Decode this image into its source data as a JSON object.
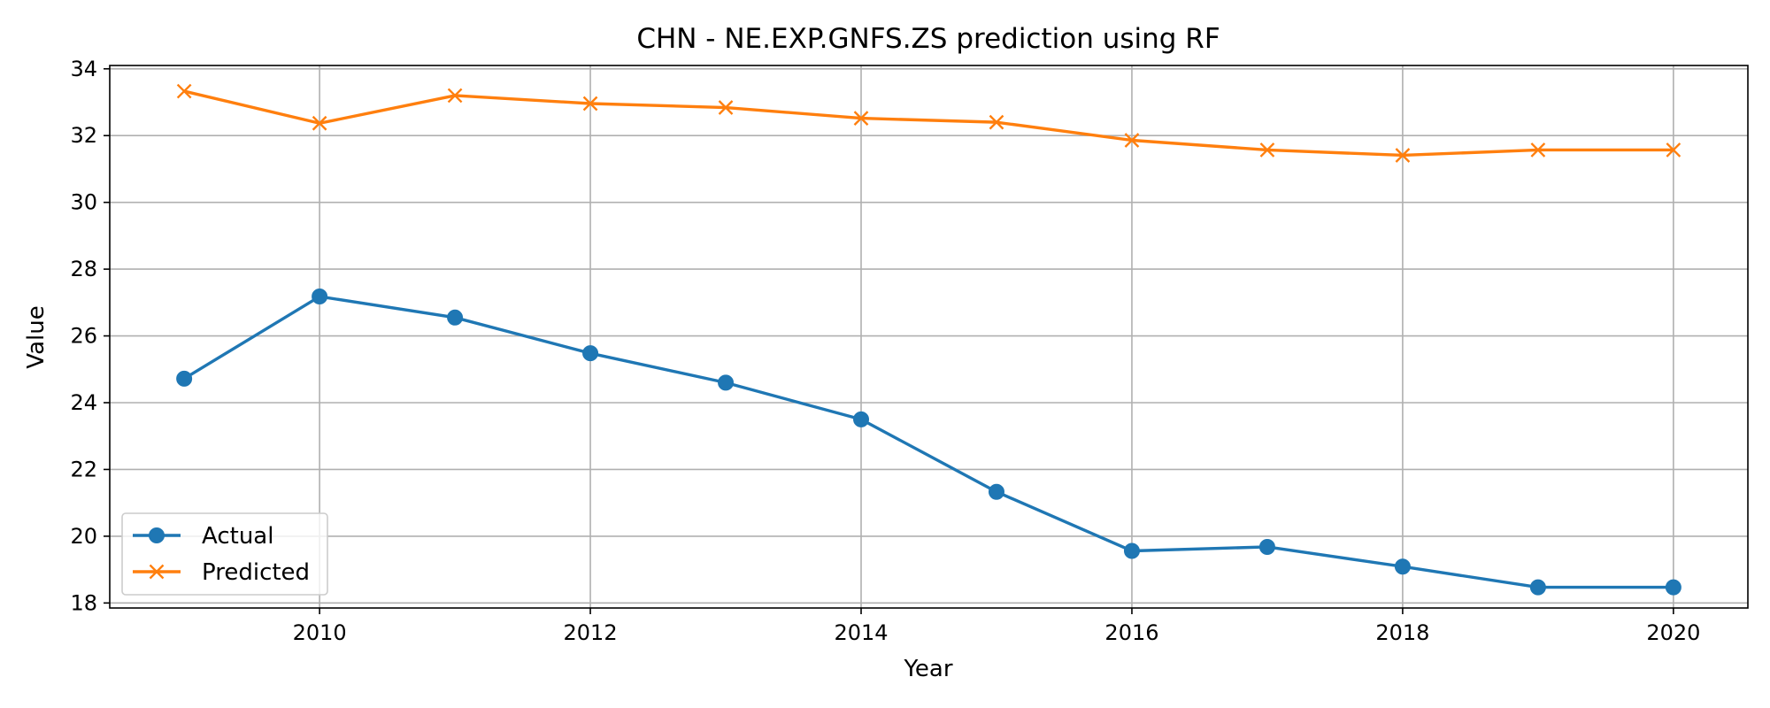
{
  "chart_data": {
    "type": "line",
    "title": "CHN - NE.EXP.GNFS.ZS prediction using RF",
    "xlabel": "Year",
    "ylabel": "Value",
    "x": [
      2009,
      2010,
      2011,
      2012,
      2013,
      2014,
      2015,
      2016,
      2017,
      2018,
      2019,
      2020
    ],
    "xlim": [
      2008.45,
      2020.55
    ],
    "ylim": [
      17.85,
      34.1
    ],
    "xticks": [
      2010,
      2012,
      2014,
      2016,
      2018,
      2020
    ],
    "yticks": [
      18,
      20,
      22,
      24,
      26,
      28,
      30,
      32,
      34
    ],
    "grid": true,
    "legend_position": "bottom-left",
    "series": [
      {
        "name": "Actual",
        "color": "#1f77b4",
        "marker": "circle",
        "values": [
          24.72,
          27.18,
          26.55,
          25.48,
          24.6,
          23.5,
          21.33,
          19.56,
          19.68,
          19.09,
          18.47,
          18.47
        ]
      },
      {
        "name": "Predicted",
        "color": "#ff7f0e",
        "marker": "x",
        "values": [
          33.33,
          32.37,
          33.2,
          32.96,
          32.84,
          32.52,
          32.4,
          31.86,
          31.57,
          31.41,
          31.57,
          31.57
        ]
      }
    ]
  }
}
